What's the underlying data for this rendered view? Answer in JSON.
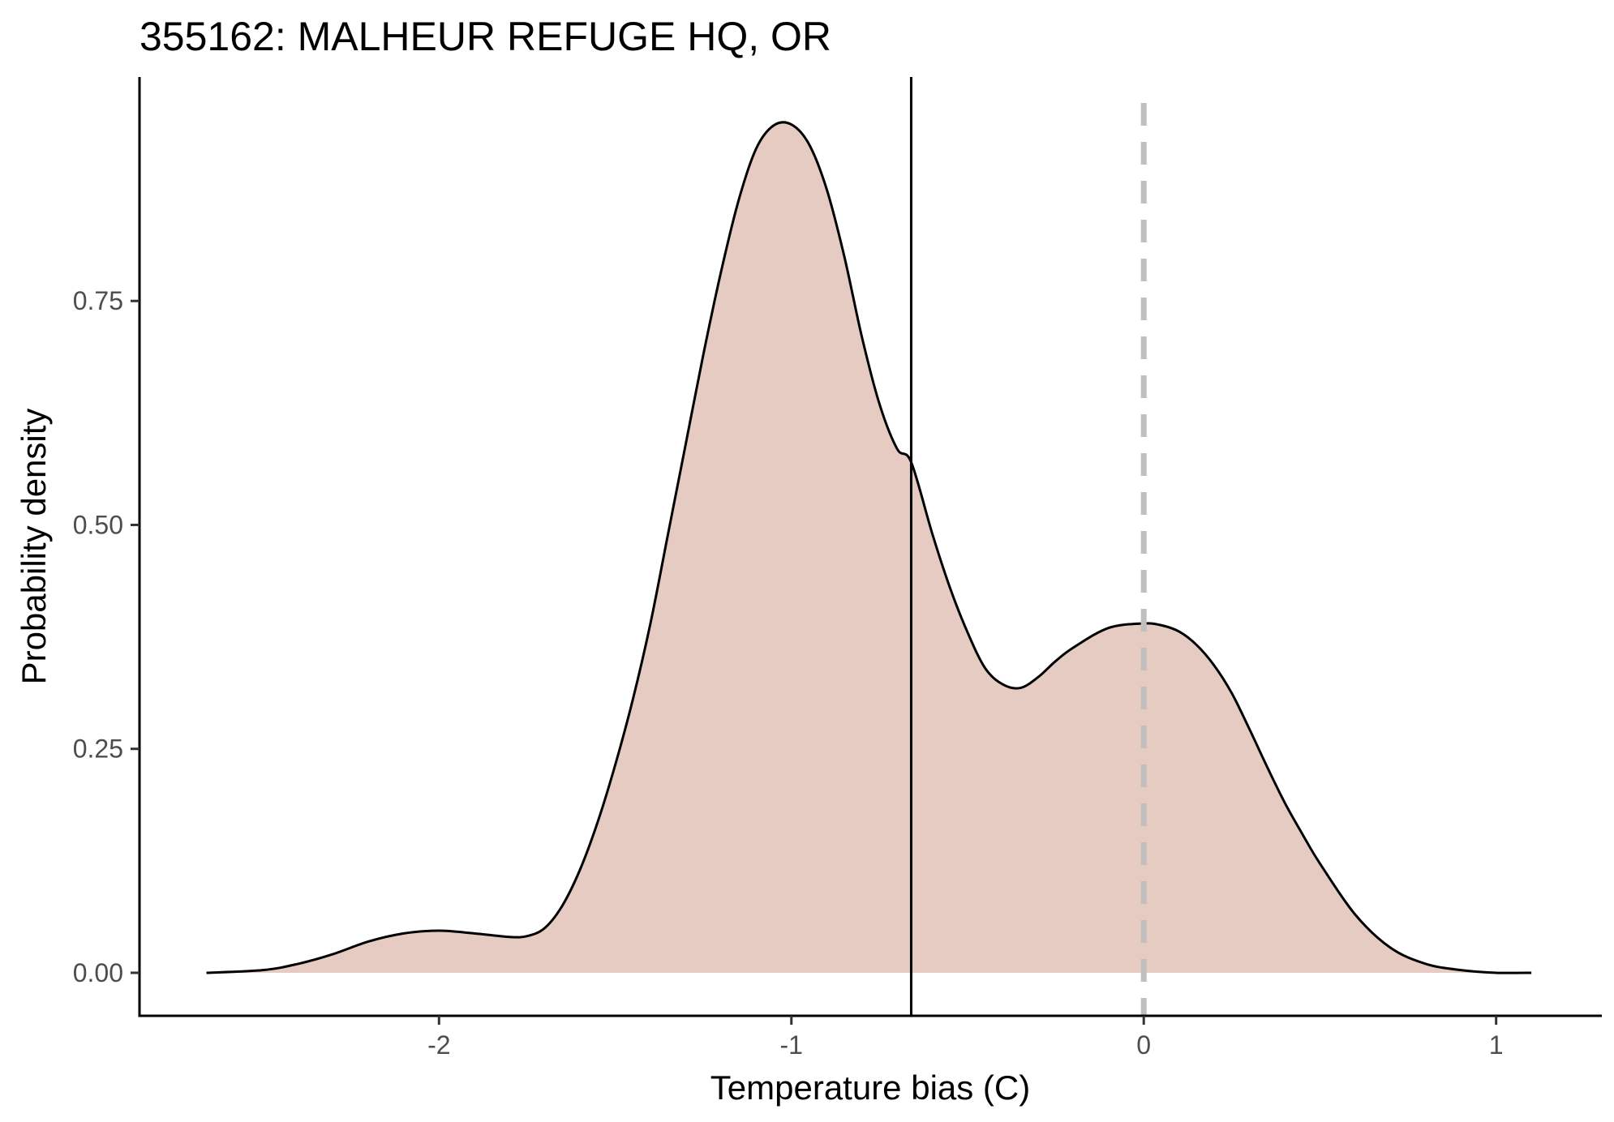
{
  "chart_data": {
    "type": "area",
    "title": "355162: MALHEUR REFUGE HQ, OR",
    "xlabel": "Temperature bias (C)",
    "ylabel": "Probability density",
    "xlim": [
      -2.85,
      1.3
    ],
    "ylim": [
      -0.048,
      1.0
    ],
    "x_ticks": [
      -2,
      -1,
      0,
      1
    ],
    "x_tick_labels": [
      "-2",
      "-1",
      "0",
      "1"
    ],
    "y_ticks": [
      0.0,
      0.25,
      0.5,
      0.75
    ],
    "y_tick_labels": [
      "0.00",
      "0.25",
      "0.50",
      "0.75"
    ],
    "grid": false,
    "fill_color": "#e6cbc3",
    "line_color": "#000000",
    "reference_lines": [
      {
        "x": -0.66,
        "style": "solid",
        "color": "#000000"
      },
      {
        "x": 0.0,
        "style": "dashed",
        "color": "#bfbfbf"
      }
    ],
    "series": [
      {
        "x": [
          -2.66,
          -2.5,
          -2.4,
          -2.3,
          -2.2,
          -2.1,
          -2.0,
          -1.9,
          -1.8,
          -1.75,
          -1.7,
          -1.65,
          -1.6,
          -1.55,
          -1.5,
          -1.45,
          -1.4,
          -1.35,
          -1.3,
          -1.25,
          -1.2,
          -1.15,
          -1.1,
          -1.05,
          -1.0,
          -0.95,
          -0.9,
          -0.85,
          -0.8,
          -0.75,
          -0.7,
          -0.66,
          -0.6,
          -0.55,
          -0.5,
          -0.45,
          -0.4,
          -0.35,
          -0.3,
          -0.25,
          -0.2,
          -0.1,
          0.0,
          0.05,
          0.1,
          0.15,
          0.2,
          0.25,
          0.3,
          0.35,
          0.4,
          0.45,
          0.5,
          0.6,
          0.7,
          0.8,
          0.9,
          1.0,
          1.1
        ],
        "y": [
          0.0,
          0.003,
          0.01,
          0.021,
          0.035,
          0.044,
          0.047,
          0.044,
          0.04,
          0.041,
          0.05,
          0.075,
          0.115,
          0.168,
          0.232,
          0.305,
          0.39,
          0.49,
          0.59,
          0.69,
          0.782,
          0.862,
          0.92,
          0.946,
          0.947,
          0.925,
          0.875,
          0.8,
          0.71,
          0.635,
          0.585,
          0.57,
          0.49,
          0.43,
          0.38,
          0.34,
          0.322,
          0.318,
          0.33,
          0.348,
          0.363,
          0.385,
          0.39,
          0.388,
          0.381,
          0.366,
          0.343,
          0.312,
          0.272,
          0.23,
          0.19,
          0.155,
          0.122,
          0.065,
          0.028,
          0.01,
          0.003,
          0.0,
          0.0
        ]
      }
    ]
  }
}
